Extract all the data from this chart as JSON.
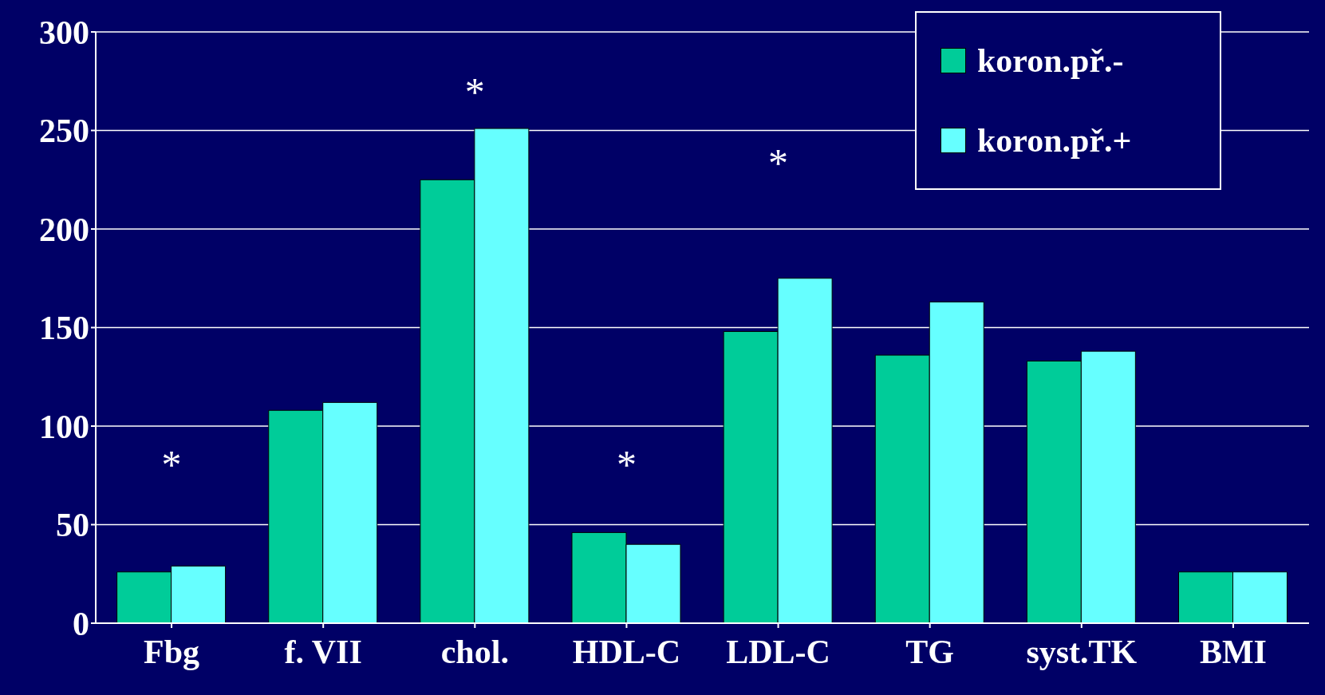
{
  "chart_data": {
    "type": "bar",
    "categories": [
      "Fbg",
      "f. VII",
      "chol.",
      "HDL-C",
      "LDL-C",
      "TG",
      "syst.TK",
      "BMI"
    ],
    "series": [
      {
        "name": "koron.př.-",
        "color": "#00cc99",
        "values": [
          26,
          108,
          225,
          46,
          148,
          136,
          133,
          26
        ]
      },
      {
        "name": "koron.př.+",
        "color": "#66ffff",
        "values": [
          29,
          112,
          251,
          40,
          175,
          163,
          138,
          26
        ]
      }
    ],
    "ylim": [
      0,
      300
    ],
    "yticks": [
      0,
      50,
      100,
      150,
      200,
      250,
      300
    ],
    "grid": "y",
    "legend": "top right",
    "annotations": [
      "*",
      "*",
      "*",
      "*"
    ]
  }
}
